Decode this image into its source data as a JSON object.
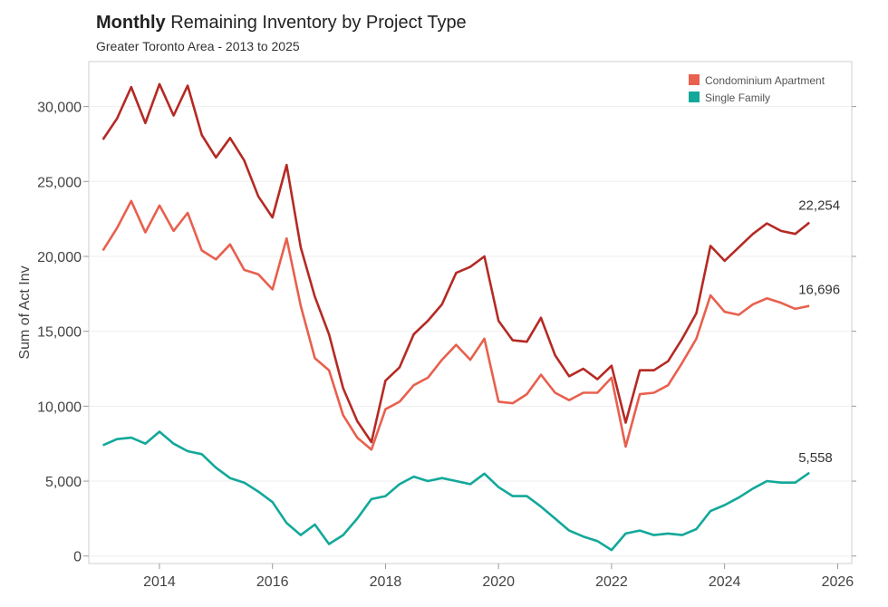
{
  "header": {
    "title_strong": "Monthly",
    "title_rest": "Remaining Inventory by Project Type",
    "subtitle": "Greater Toronto Area - 2013 to 2025"
  },
  "colors": {
    "total": "#b52a24",
    "condo": "#e8604e",
    "single_family": "#13a89a",
    "frame": "#cfcfcf",
    "grid": "#eeeeee"
  },
  "chart_data": {
    "type": "line",
    "ylabel": "Sum of Act Inv",
    "xlim": [
      2012.75,
      2026.25
    ],
    "ylim": [
      -500,
      33000
    ],
    "xticks": [
      "2014",
      "2016",
      "2018",
      "2020",
      "2022",
      "2024",
      "2026"
    ],
    "yticks": [
      "0",
      "5,000",
      "10,000",
      "15,000",
      "20,000",
      "25,000",
      "30,000"
    ],
    "legend": {
      "position": "top-right",
      "entries": [
        "Condominium Apartment",
        "Single Family"
      ]
    },
    "end_labels": {
      "total": "22,254",
      "condo": "16,696",
      "single_family": "5,558"
    },
    "x": [
      2013.0,
      2013.25,
      2013.5,
      2013.75,
      2014.0,
      2014.25,
      2014.5,
      2014.75,
      2015.0,
      2015.25,
      2015.5,
      2015.75,
      2016.0,
      2016.25,
      2016.5,
      2016.75,
      2017.0,
      2017.25,
      2017.5,
      2017.75,
      2018.0,
      2018.25,
      2018.5,
      2018.75,
      2019.0,
      2019.25,
      2019.5,
      2019.75,
      2020.0,
      2020.25,
      2020.5,
      2020.75,
      2021.0,
      2021.25,
      2021.5,
      2021.75,
      2022.0,
      2022.25,
      2022.5,
      2022.75,
      2023.0,
      2023.25,
      2023.5,
      2023.75,
      2024.0,
      2024.25,
      2024.5,
      2024.75,
      2025.0,
      2025.25,
      2025.5
    ],
    "series": [
      {
        "key": "total",
        "values": [
          27800,
          29200,
          31300,
          28900,
          31500,
          29400,
          31400,
          28100,
          26600,
          27900,
          26400,
          24000,
          22600,
          26100,
          20600,
          17300,
          14800,
          11200,
          9000,
          7600,
          11700,
          12600,
          14800,
          15700,
          16800,
          18900,
          19300,
          20000,
          15700,
          14400,
          14300,
          15900,
          13400,
          12000,
          12500,
          11800,
          12700,
          8900,
          12400,
          12400,
          13000,
          14500,
          16200,
          20700,
          19700,
          20600,
          21500,
          22200,
          21700,
          21500,
          22254
        ]
      },
      {
        "key": "condo",
        "values": [
          20400,
          21900,
          23700,
          21600,
          23400,
          21700,
          22900,
          20400,
          19800,
          20800,
          19100,
          18800,
          17800,
          21200,
          16700,
          13200,
          12400,
          9400,
          7900,
          7100,
          9800,
          10300,
          11400,
          11900,
          13100,
          14100,
          13100,
          14500,
          10300,
          10200,
          10800,
          12100,
          10900,
          10400,
          10900,
          10900,
          11900,
          7300,
          10800,
          10900,
          11400,
          12900,
          14500,
          17400,
          16300,
          16100,
          16800,
          17200,
          16900,
          16500,
          16696
        ]
      },
      {
        "key": "single_family",
        "values": [
          7400,
          7800,
          7900,
          7500,
          8300,
          7500,
          7000,
          6800,
          5900,
          5200,
          4900,
          4300,
          3600,
          2200,
          1400,
          2100,
          800,
          1400,
          2500,
          3800,
          4000,
          4800,
          5300,
          5000,
          5200,
          5000,
          4800,
          5500,
          4600,
          4000,
          4000,
          3300,
          2500,
          1700,
          1300,
          1000,
          400,
          1500,
          1700,
          1400,
          1500,
          1400,
          1800,
          3000,
          3400,
          3900,
          4500,
          5000,
          4900,
          4900,
          5558
        ]
      }
    ]
  }
}
